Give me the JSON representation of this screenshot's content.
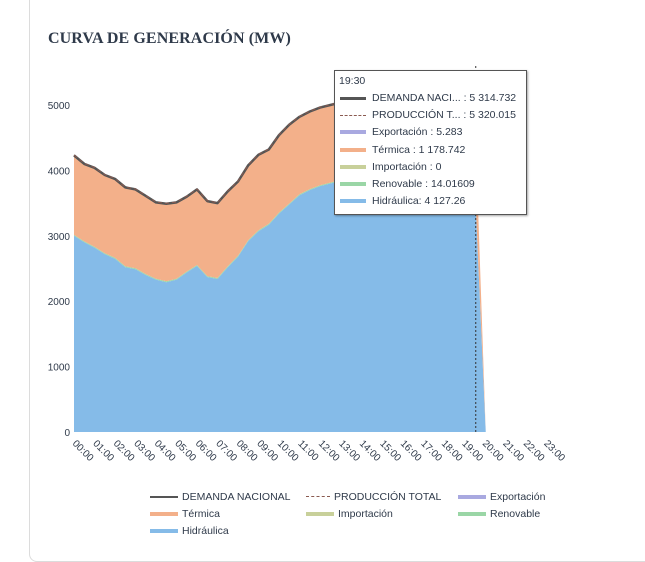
{
  "chart_data": {
    "type": "area",
    "title": "CURVA DE GENERACIÓN (MW)",
    "xlabel": "",
    "ylabel": "",
    "ylim": [
      0,
      5000
    ],
    "yticks": [
      0,
      1000,
      2000,
      3000,
      4000,
      5000
    ],
    "xtick_labels": [
      "00:00",
      "01:00",
      "02:00",
      "03:00",
      "04:00",
      "05:00",
      "06:00",
      "07:00",
      "08:00",
      "09:00",
      "10:00",
      "11:00",
      "12:00",
      "13:00",
      "14:00",
      "15:00",
      "16:00",
      "17:00",
      "18:00",
      "19:00",
      "20:00",
      "21:00",
      "22:00",
      "23:00"
    ],
    "x": [
      "00:00",
      "00:30",
      "01:00",
      "01:30",
      "02:00",
      "02:30",
      "03:00",
      "03:30",
      "04:00",
      "04:30",
      "05:00",
      "05:30",
      "06:00",
      "06:30",
      "07:00",
      "07:30",
      "08:00",
      "08:30",
      "09:00",
      "09:30",
      "10:00",
      "10:30",
      "11:00",
      "11:30",
      "12:00",
      "12:30",
      "13:00",
      "13:30",
      "14:00",
      "14:30",
      "15:00",
      "15:30",
      "16:00",
      "16:30",
      "17:00",
      "17:30",
      "18:00",
      "18:30",
      "19:00",
      "19:30"
    ],
    "stacked": true,
    "series": [
      {
        "name": "Hidráulica",
        "kind": "area",
        "color": "#85bbe8",
        "values": [
          3000,
          2900,
          2820,
          2720,
          2650,
          2520,
          2490,
          2400,
          2330,
          2290,
          2330,
          2440,
          2540,
          2370,
          2340,
          2520,
          2680,
          2920,
          3070,
          3170,
          3340,
          3480,
          3620,
          3700,
          3760,
          3800,
          3840,
          3870,
          3890,
          3900,
          3910,
          3920,
          3930,
          3950,
          3970,
          4000,
          4040,
          4070,
          4100,
          4127.26
        ]
      },
      {
        "name": "Renovable",
        "kind": "area",
        "color": "#9ad6a6",
        "values": [
          14,
          14,
          14,
          14,
          14,
          14,
          14,
          14,
          14,
          14,
          14,
          14,
          14,
          14,
          14,
          14,
          14,
          14,
          14,
          14,
          14,
          14,
          14,
          14,
          14,
          14,
          14,
          14,
          14,
          14,
          14,
          14,
          14,
          14,
          14,
          14,
          14,
          14,
          14,
          14.01609
        ]
      },
      {
        "name": "Importación",
        "kind": "area",
        "color": "#c8d09a",
        "values": [
          0,
          0,
          0,
          0,
          0,
          0,
          0,
          0,
          0,
          0,
          0,
          0,
          0,
          0,
          0,
          0,
          0,
          0,
          0,
          0,
          0,
          0,
          0,
          0,
          0,
          0,
          0,
          0,
          0,
          0,
          0,
          0,
          0,
          0,
          0,
          0,
          0,
          0,
          0,
          0
        ]
      },
      {
        "name": "Térmica",
        "kind": "area",
        "color": "#f3b08a",
        "values": [
          1216,
          1186,
          1206,
          1196,
          1206,
          1206,
          1206,
          1196,
          1166,
          1186,
          1166,
          1146,
          1156,
          1146,
          1146,
          1146,
          1136,
          1146,
          1156,
          1136,
          1186,
          1206,
          1186,
          1180,
          1180,
          1180,
          1180,
          1180,
          1180,
          1180,
          1180,
          1180,
          1180,
          1180,
          1180,
          1180,
          1180,
          1180,
          1180,
          1178.742
        ]
      },
      {
        "name": "Exportación",
        "kind": "area",
        "color": "#a9a9e0",
        "values": [
          5,
          5,
          5,
          5,
          5,
          5,
          5,
          5,
          5,
          5,
          5,
          5,
          5,
          5,
          5,
          5,
          5,
          5,
          5,
          5,
          5,
          5,
          5,
          5,
          5,
          5,
          5,
          5,
          5,
          5,
          5,
          5,
          5,
          5,
          5,
          5,
          5,
          5,
          5,
          5.283
        ]
      },
      {
        "name": "DEMANDA NACIONAL",
        "kind": "line",
        "color": "#555555",
        "values": [
          4230,
          4100,
          4040,
          3930,
          3870,
          3740,
          3710,
          3610,
          3510,
          3490,
          3510,
          3600,
          3710,
          3530,
          3500,
          3680,
          3830,
          4080,
          4240,
          4320,
          4540,
          4700,
          4820,
          4900,
          4960,
          5000,
          5040,
          5070,
          5090,
          5100,
          5110,
          5120,
          5130,
          5150,
          5170,
          5200,
          5240,
          5270,
          5300,
          5314.732
        ]
      },
      {
        "name": "PRODUCCIÓN TOTAL",
        "kind": "dashed-line",
        "color": "#8a5a50",
        "values": [
          4235,
          4105,
          4045,
          3935,
          3875,
          3745,
          3715,
          3615,
          3515,
          3495,
          3515,
          3605,
          3715,
          3535,
          3505,
          3685,
          3835,
          4085,
          4245,
          4325,
          4545,
          4705,
          4825,
          4905,
          4965,
          5005,
          5045,
          5075,
          5095,
          5105,
          5115,
          5125,
          5135,
          5155,
          5175,
          5205,
          5245,
          5275,
          5305,
          5320.015
        ]
      }
    ],
    "hover_marker_x": "19:30",
    "legend_position": "bottom",
    "grid": false
  },
  "header": {
    "title": "CURVA DE GENERACIÓN (MW)"
  },
  "legend": {
    "items": [
      {
        "label": "DEMANDA NACIONAL",
        "color": "#555555",
        "style": "line"
      },
      {
        "label": "PRODUCCIÓN TOTAL",
        "color": "#8a5a50",
        "style": "dash"
      },
      {
        "label": "Exportación",
        "color": "#a9a9e0",
        "style": "area"
      },
      {
        "label": "Térmica",
        "color": "#f3b08a",
        "style": "area"
      },
      {
        "label": "Importación",
        "color": "#c8d09a",
        "style": "area"
      },
      {
        "label": "Renovable",
        "color": "#9ad6a6",
        "style": "area"
      },
      {
        "label": "Hidráulica",
        "color": "#85bbe8",
        "style": "area"
      }
    ]
  },
  "tooltip": {
    "time": "19:30",
    "rows": [
      {
        "text": "DEMANDA NACI... : 5 314.732",
        "color": "#555555",
        "style": "line"
      },
      {
        "text": "PRODUCCIÓN T... : 5 320.015",
        "color": "#8a5a50",
        "style": "dash"
      },
      {
        "text": "Exportación : 5.283",
        "color": "#a9a9e0",
        "style": "area"
      },
      {
        "text": "Térmica : 1 178.742",
        "color": "#f3b08a",
        "style": "area"
      },
      {
        "text": "Importación : 0",
        "color": "#c8d09a",
        "style": "area"
      },
      {
        "text": "Renovable : 14.01609",
        "color": "#9ad6a6",
        "style": "area"
      },
      {
        "text": "Hidráulica: 4 127.26",
        "color": "#85bbe8",
        "style": "area"
      }
    ]
  }
}
